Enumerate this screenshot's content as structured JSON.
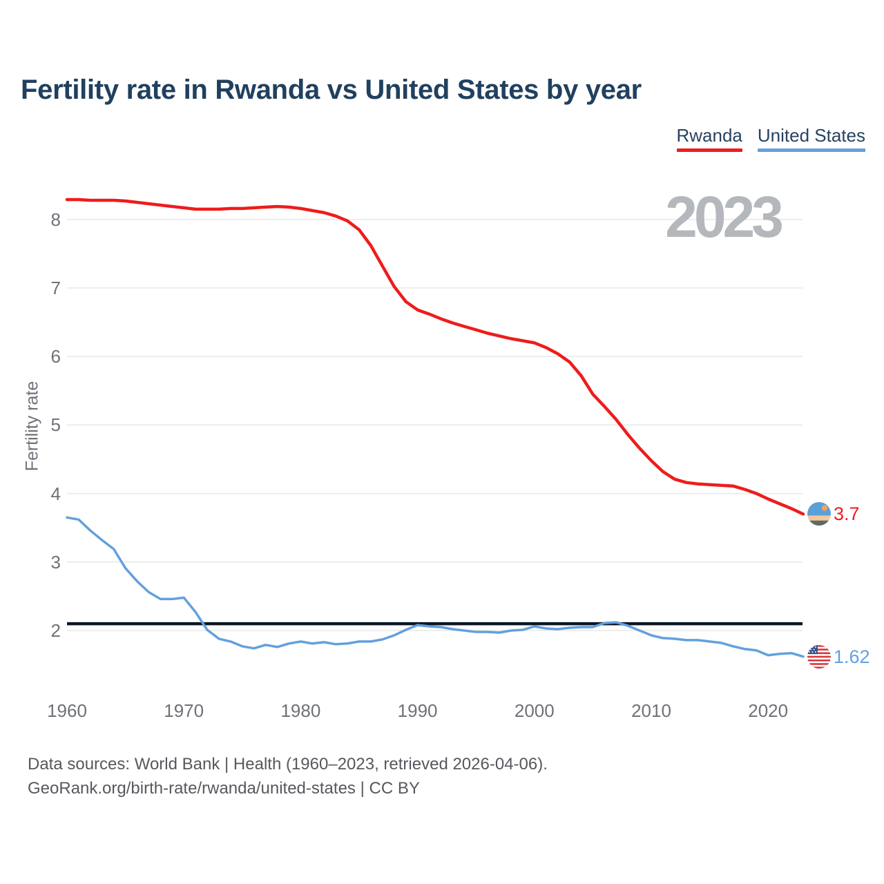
{
  "legend": {
    "rwanda": {
      "label": "Rwanda",
      "color": "#ee1c1c"
    },
    "united_states": {
      "label": "United States",
      "color": "#63a0dd"
    }
  },
  "footer": {
    "line1": "Data sources: World Bank | Health (1960–2023, retrieved 2026-04-06).",
    "line2": "GeoRank.org/birth-rate/rwanda/united-states | CC BY"
  },
  "colors": {
    "title": "#21405f",
    "grid": "#e8e8eb",
    "tick_text": "#6e7177",
    "watermark": "#b4b8bc",
    "reference_line": "#0c1624",
    "footer_text": "#55585d"
  },
  "chart_data": {
    "type": "line",
    "title": "Fertility rate in Rwanda vs United States by year",
    "xlabel": "",
    "ylabel": "Fertility rate",
    "watermark_year": "2023",
    "grid": true,
    "legend_position": "top-right",
    "xlim": [
      1960,
      2023
    ],
    "ylim": [
      1.4,
      8.6
    ],
    "x_ticks": [
      1960,
      1970,
      1980,
      1990,
      2000,
      2010,
      2020
    ],
    "y_ticks": [
      2,
      3,
      4,
      5,
      6,
      7,
      8
    ],
    "reference_line": {
      "value": 2.1,
      "color": "#0c1624"
    },
    "years": [
      1960,
      1961,
      1962,
      1963,
      1964,
      1965,
      1966,
      1967,
      1968,
      1969,
      1970,
      1971,
      1972,
      1973,
      1974,
      1975,
      1976,
      1977,
      1978,
      1979,
      1980,
      1981,
      1982,
      1983,
      1984,
      1985,
      1986,
      1987,
      1988,
      1989,
      1990,
      1991,
      1992,
      1993,
      1994,
      1995,
      1996,
      1997,
      1998,
      1999,
      2000,
      2001,
      2002,
      2003,
      2004,
      2005,
      2006,
      2007,
      2008,
      2009,
      2010,
      2011,
      2012,
      2013,
      2014,
      2015,
      2016,
      2017,
      2018,
      2019,
      2020,
      2021,
      2022,
      2023
    ],
    "series": [
      {
        "name": "Rwanda",
        "key": "rw",
        "color": "#ee1c1c",
        "end_label": "3.7",
        "values": [
          8.29,
          8.29,
          8.28,
          8.28,
          8.28,
          8.27,
          8.25,
          8.23,
          8.21,
          8.19,
          8.17,
          8.15,
          8.15,
          8.15,
          8.16,
          8.16,
          8.17,
          8.18,
          8.19,
          8.18,
          8.16,
          8.13,
          8.1,
          8.05,
          7.98,
          7.85,
          7.62,
          7.32,
          7.02,
          6.8,
          6.68,
          6.62,
          6.55,
          6.49,
          6.44,
          6.39,
          6.34,
          6.3,
          6.26,
          6.23,
          6.2,
          6.13,
          6.04,
          5.92,
          5.72,
          5.45,
          5.27,
          5.08,
          4.86,
          4.66,
          4.48,
          4.32,
          4.21,
          4.16,
          4.14,
          4.13,
          4.12,
          4.11,
          4.06,
          4.0,
          3.92,
          3.85,
          3.78,
          3.7
        ]
      },
      {
        "name": "United States",
        "key": "us",
        "color": "#63a0dd",
        "end_label": "1.62",
        "values": [
          3.65,
          3.62,
          3.46,
          3.32,
          3.19,
          2.91,
          2.72,
          2.56,
          2.46,
          2.46,
          2.48,
          2.27,
          2.01,
          1.88,
          1.84,
          1.77,
          1.74,
          1.79,
          1.76,
          1.81,
          1.84,
          1.81,
          1.83,
          1.8,
          1.81,
          1.84,
          1.84,
          1.87,
          1.93,
          2.01,
          2.08,
          2.06,
          2.05,
          2.02,
          2.0,
          1.98,
          1.98,
          1.97,
          2.0,
          2.01,
          2.06,
          2.03,
          2.02,
          2.04,
          2.05,
          2.05,
          2.11,
          2.12,
          2.07,
          2.0,
          1.93,
          1.89,
          1.88,
          1.86,
          1.86,
          1.84,
          1.82,
          1.77,
          1.73,
          1.71,
          1.64,
          1.66,
          1.67,
          1.62
        ]
      }
    ]
  }
}
